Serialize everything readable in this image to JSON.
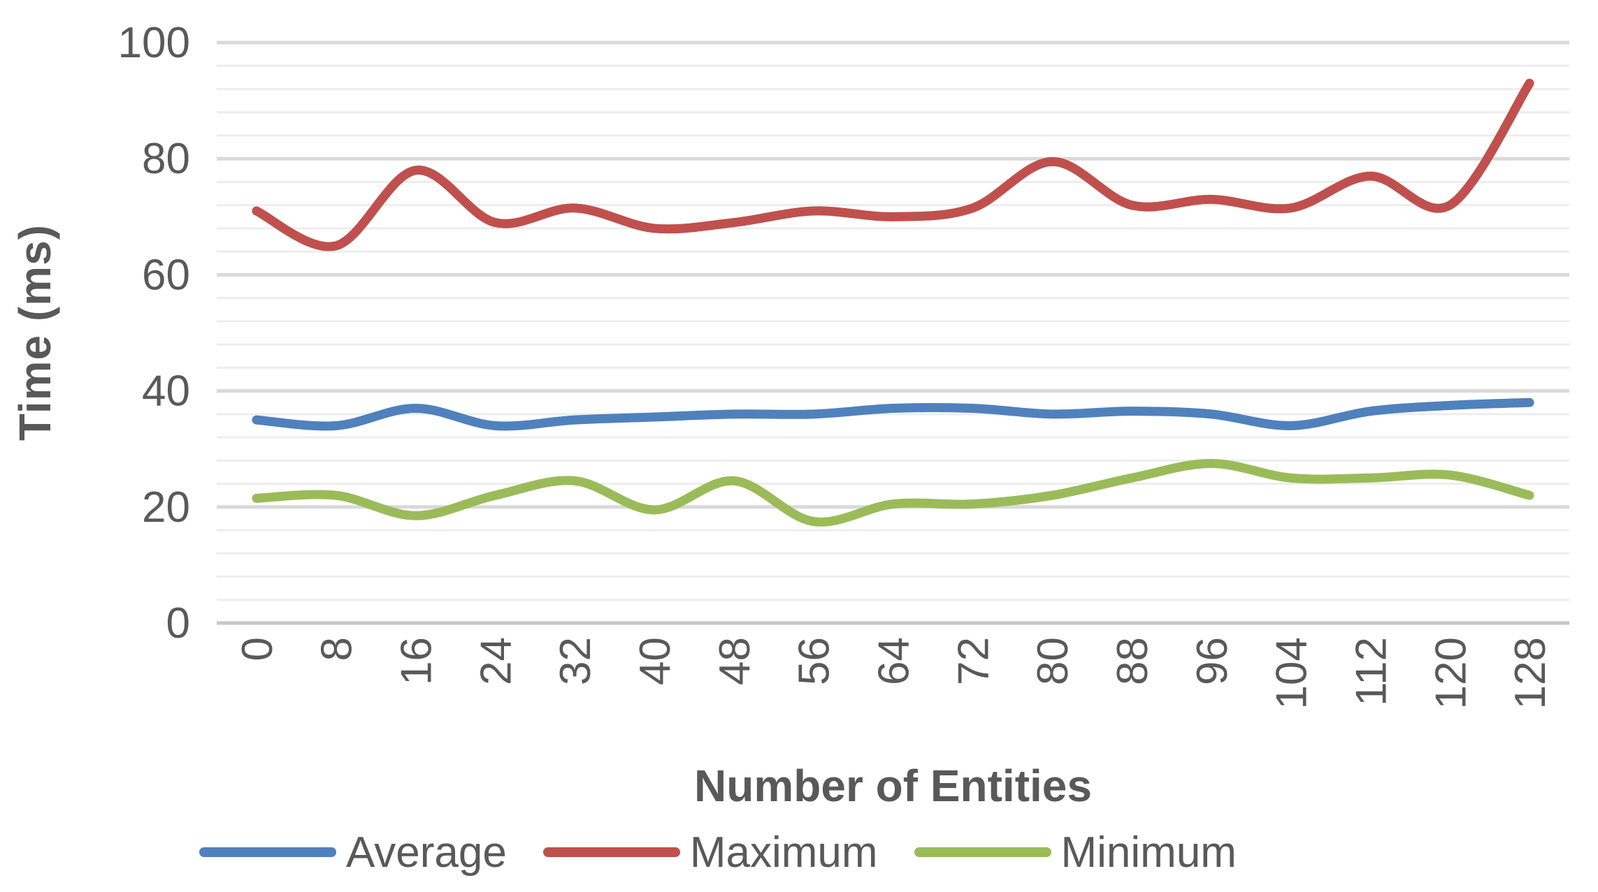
{
  "chart_data": {
    "type": "line",
    "title": "",
    "xlabel": "Number of Entities",
    "ylabel": "Time (ms)",
    "categories": [
      0,
      8,
      16,
      24,
      32,
      40,
      48,
      56,
      64,
      72,
      80,
      88,
      96,
      104,
      112,
      120,
      128
    ],
    "series": [
      {
        "name": "Average",
        "color": "#4F81BD",
        "values": [
          35,
          34,
          37,
          34,
          35,
          35.5,
          36,
          36,
          37,
          37,
          36,
          36.5,
          36,
          34,
          36.5,
          37.5,
          38
        ]
      },
      {
        "name": "Maximum",
        "color": "#C0504D",
        "values": [
          71,
          65,
          78,
          69,
          71.5,
          68,
          69,
          71,
          70,
          71.5,
          79.5,
          72,
          73,
          71.5,
          77,
          72,
          93
        ]
      },
      {
        "name": "Minimum",
        "color": "#9BBB59",
        "values": [
          21.5,
          22,
          18.5,
          22,
          24.5,
          19.5,
          24.5,
          17.5,
          20.5,
          20.5,
          22,
          25,
          27.5,
          25,
          25,
          25.5,
          22
        ]
      }
    ],
    "ylim": [
      0,
      100
    ],
    "y_ticks": [
      0,
      20,
      40,
      60,
      80,
      100
    ],
    "minor_grid_step": 4,
    "major_grid_step": 20,
    "grid": "horizontal, minor every 4 ms, major every 20 ms",
    "legend_position": "bottom",
    "line_style": "smooth",
    "colors": {
      "axis_text": "#595959",
      "minor_gridline": "#EDEDED",
      "major_gridline": "#D9D9D9",
      "zero_axis_line": "#C6C6C6"
    }
  }
}
